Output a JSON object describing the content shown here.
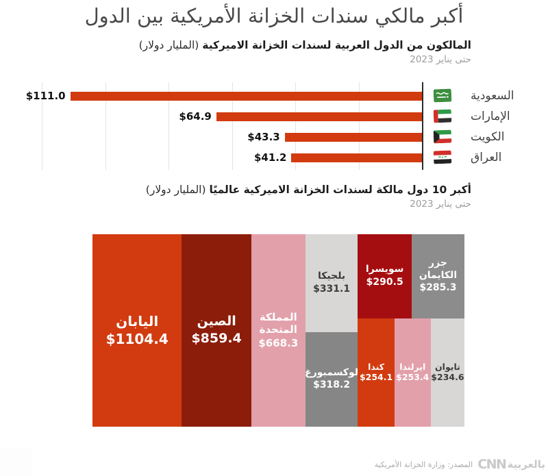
{
  "page": {
    "title": "أكبر مالكي سندات الخزانة الأمريكية بين الدول",
    "footer_source": "المصدر: وزارة الخزانة الأمريكية",
    "footer_logo_cnn": "CNN",
    "footer_logo_arabic": "بالعربية"
  },
  "section_arab": {
    "heading_bold": "المالكون من الدول العربية لسندات الخزانة الاميركية",
    "heading_unit": "(المليار دولار)",
    "subheading": "حتى يناير 2023"
  },
  "section_world": {
    "heading_bold": "أكبر 10 دول مالكة لسندات الخزانة الاميركية عالميًا",
    "heading_unit": "(المليار دولار)",
    "subheading": "حتى يناير 2023"
  },
  "chart_data": [
    {
      "type": "bar",
      "orientation": "horizontal",
      "direction": "rtl-axis-on-right",
      "title": "المالكون من الدول العربية لسندات الخزانة الاميركية (المليار دولار)",
      "as_of": "حتى يناير 2023",
      "categories": [
        "السعودية",
        "الإمارات",
        "الكويت",
        "العراق"
      ],
      "values": [
        111.0,
        64.9,
        43.3,
        41.2
      ],
      "value_labels": [
        "$111.0",
        "$64.9",
        "$43.3",
        "$41.2"
      ],
      "flags": [
        "saudi-arabia",
        "uae",
        "kuwait",
        "iraq"
      ],
      "xlim": [
        0,
        120
      ],
      "grid_step": 20,
      "grid": true,
      "bar_color": "#d23b10"
    },
    {
      "type": "treemap",
      "title": "أكبر 10 دول مالكة لسندات الخزانة الاميركية عالميًا (المليار دولار)",
      "as_of": "حتى يناير 2023",
      "layout_hint": "columns left-to-right: Japan | China | UK | (Belgium over Luxembourg) | ((Switzerland+Cayman) over (Canada+Ireland+Taiwan))",
      "items": [
        {
          "name": "اليابان",
          "value": 1104.4,
          "value_label": "$1104.4",
          "color": "#d23b10",
          "text_color": "#ffffff"
        },
        {
          "name": "الصين",
          "value": 859.4,
          "value_label": "$859.4",
          "color": "#8c1d0b",
          "text_color": "#ffffff"
        },
        {
          "name": "المملكة المتحدة",
          "value": 668.3,
          "value_label": "$668.3",
          "color": "#e2a0ab",
          "text_color": "#ffffff"
        },
        {
          "name": "بلجيكا",
          "value": 331.1,
          "value_label": "$331.1",
          "color": "#d8d7d5",
          "text_color": "#3c3c3c"
        },
        {
          "name": "لوكسمبورغ",
          "value": 318.2,
          "value_label": "$318.2",
          "color": "#868686",
          "text_color": "#ffffff"
        },
        {
          "name": "سويسرا",
          "value": 290.5,
          "value_label": "$290.5",
          "color": "#a50e10",
          "text_color": "#ffffff"
        },
        {
          "name": "جزر الكايمان",
          "value": 285.3,
          "value_label": "$285.3",
          "color": "#8c8c8c",
          "text_color": "#ffffff"
        },
        {
          "name": "كندا",
          "value": 254.1,
          "value_label": "$254.1",
          "color": "#d23b10",
          "text_color": "#ffffff"
        },
        {
          "name": "ايرلندا",
          "value": 253.4,
          "value_label": "$253.4",
          "color": "#e2a0ab",
          "text_color": "#ffffff"
        },
        {
          "name": "تايوان",
          "value": 234.6,
          "value_label": "$234.6",
          "color": "#d8d7d5",
          "text_color": "#3c3c3c"
        }
      ]
    }
  ]
}
